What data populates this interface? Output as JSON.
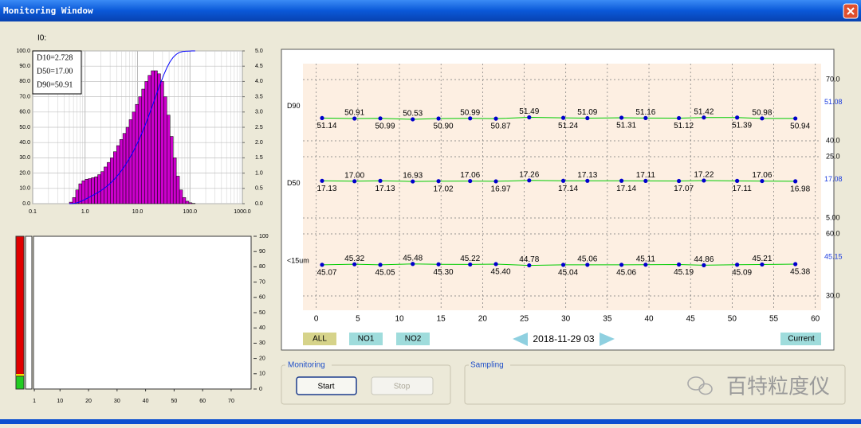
{
  "window": {
    "title": "Monitoring Window"
  },
  "chart_data": [
    {
      "type": "histogram",
      "label": "I0:",
      "annotations": [
        "D10=2.728",
        "D50=17.00",
        "D90=50.91"
      ],
      "xscale": "log",
      "xlim": [
        0.1,
        1000
      ],
      "xticks": [
        0.1,
        {
          "value": 1,
          "label": "1.0"
        },
        {
          "value": 10,
          "label": "10.0"
        },
        {
          "value": 100,
          "label": "100.0"
        },
        {
          "value": 1000,
          "label": "1000.0"
        }
      ],
      "ylim": [
        0,
        100
      ],
      "yticks": [
        {
          "value": 0,
          "label": "0.0"
        },
        {
          "value": 10,
          "label": "10.0"
        },
        {
          "value": 20,
          "label": "20.0"
        },
        {
          "value": 30,
          "label": "30.0"
        },
        {
          "value": 40,
          "label": "40.0"
        },
        {
          "value": 50,
          "label": "50.0"
        },
        {
          "value": 60,
          "label": "60.0"
        },
        {
          "value": 70,
          "label": "70.0"
        },
        {
          "value": 80,
          "label": "80.0"
        },
        {
          "value": 90,
          "label": "90.0"
        },
        {
          "value": 100,
          "label": "100.0"
        }
      ],
      "y2lim": [
        0,
        5
      ],
      "y2ticks": [
        {
          "value": 0,
          "label": "0.0"
        },
        0.5,
        {
          "value": 1,
          "label": "1.0"
        },
        1.5,
        {
          "value": 2,
          "label": "2.0"
        },
        2.5,
        {
          "value": 3,
          "label": "3.0"
        },
        3.5,
        {
          "value": 4,
          "label": "4.0"
        },
        4.5,
        {
          "value": 5,
          "label": "5.0"
        }
      ],
      "grid": true,
      "bins": [
        0.501,
        0.575,
        0.661,
        0.759,
        0.871,
        1.0,
        1.148,
        1.318,
        1.514,
        1.738,
        1.995,
        2.291,
        2.63,
        3.02,
        3.467,
        3.981,
        4.571,
        5.248,
        6.026,
        6.918,
        7.943,
        9.12,
        10.47,
        12.02,
        13.8,
        15.85,
        18.2,
        20.89,
        23.99,
        27.54,
        31.62,
        36.31,
        41.69,
        47.86,
        54.95,
        63.1,
        72.44,
        83.18,
        95.5,
        109.6,
        125.9
      ],
      "values": [
        0.05,
        0.2,
        0.45,
        0.65,
        0.75,
        0.8,
        0.82,
        0.85,
        0.88,
        0.95,
        1.05,
        1.2,
        1.35,
        1.5,
        1.7,
        1.9,
        2.1,
        2.3,
        2.5,
        2.75,
        3.0,
        3.25,
        3.5,
        3.75,
        4.0,
        4.2,
        4.35,
        4.35,
        4.25,
        4.0,
        3.5,
        2.9,
        2.2,
        1.5,
        0.9,
        0.45,
        0.2,
        0.08,
        0.03,
        0.01
      ],
      "color": "#cc00cc",
      "axis": "y2",
      "line": {
        "color": "#0000ff",
        "values": [
          0,
          0.07,
          0.33,
          0.93,
          1.8,
          2.8,
          3.86,
          4.95,
          6.08,
          7.25,
          8.51,
          9.91,
          11.5,
          13.3,
          15.3,
          17.6,
          20.1,
          22.9,
          25.9,
          29.3,
          32.9,
          36.9,
          41.2,
          45.9,
          50.9,
          56.2,
          61.8,
          67.6,
          73.4,
          79.0,
          84.3,
          89.0,
          92.9,
          95.8,
          97.8,
          99.0,
          99.6,
          99.8,
          99.9,
          100.0,
          100.0
        ]
      }
    },
    {
      "type": "bar",
      "xlim": [
        0.7,
        77
      ],
      "xticks": [
        1,
        10,
        20,
        30,
        40,
        50,
        60,
        70
      ],
      "ylim": [
        0,
        100
      ],
      "yticks": [
        0,
        10,
        20,
        30,
        40,
        50,
        60,
        70,
        80,
        90,
        100
      ]
    },
    {
      "type": "line",
      "xlim": [
        -1.6,
        60.7
      ],
      "xticks": [
        0,
        5,
        10,
        15,
        20,
        25,
        30,
        35,
        40,
        45,
        50,
        55,
        60
      ],
      "grid": true,
      "x": [
        0.7,
        4.6,
        7.7,
        11.6,
        14.7,
        18.5,
        21.6,
        25.6,
        29.7,
        32.6,
        36.7,
        39.6,
        43.6,
        46.6,
        50.6,
        53.6,
        57.6
      ],
      "series": [
        {
          "name": "D90",
          "color": "#00cc00",
          "marker_color": "#0000cc",
          "current": 51.08,
          "ylim": [
            40,
            70
          ],
          "yticks": [
            {
              "value": 70,
              "label": "70.0"
            },
            {
              "value": 40,
              "label": "40.0"
            }
          ],
          "values": [
            51.14,
            50.91,
            50.99,
            50.53,
            50.9,
            50.99,
            50.87,
            51.49,
            51.24,
            51.09,
            51.31,
            51.16,
            51.12,
            51.42,
            51.39,
            50.98,
            50.94
          ],
          "value_labels": [
            "51.14",
            "50.91",
            "50.99",
            "50.53",
            "50.90",
            "50.99",
            "50.87",
            "51.49",
            "51.24",
            "51.09",
            "51.31",
            "51.16",
            "51.12",
            "51.42",
            "51.39",
            "50.98",
            "50.94"
          ]
        },
        {
          "name": "D50",
          "color": "#00cc00",
          "marker_color": "#0000cc",
          "current": 17.08,
          "ylim": [
            5,
            25
          ],
          "yticks": [
            {
              "value": 25,
              "label": "25.0"
            },
            {
              "value": 5,
              "label": "5.00"
            }
          ],
          "values": [
            17.13,
            17.0,
            17.13,
            16.93,
            17.02,
            17.06,
            16.97,
            17.26,
            17.14,
            17.13,
            17.14,
            17.11,
            17.07,
            17.22,
            17.11,
            17.06,
            16.98
          ],
          "value_labels": [
            "17.13",
            "17.00",
            "17.13",
            "16.93",
            "17.02",
            "17.06",
            "16.97",
            "17.26",
            "17.14",
            "17.13",
            "17.14",
            "17.11",
            "17.07",
            "17.22",
            "17.11",
            "17.06",
            "16.98"
          ]
        },
        {
          "name": "<15um",
          "color": "#00cc00",
          "marker_color": "#0000cc",
          "current": 45.15,
          "ylim": [
            30,
            60
          ],
          "yticks": [
            {
              "value": 60,
              "label": "60.0"
            },
            {
              "value": 30,
              "label": "30.0"
            }
          ],
          "values": [
            45.07,
            45.32,
            45.05,
            45.48,
            45.3,
            45.22,
            45.4,
            44.78,
            45.04,
            45.06,
            45.06,
            45.11,
            45.19,
            44.86,
            45.09,
            45.21,
            45.38
          ],
          "value_labels": [
            "45.07",
            "45.32",
            "45.05",
            "45.48",
            "45.30",
            "45.22",
            "45.40",
            "44.78",
            "45.04",
            "45.06",
            "45.06",
            "45.11",
            "45.19",
            "44.86",
            "45.09",
            "45.21",
            "45.38"
          ]
        }
      ]
    }
  ],
  "controls": {
    "filters": [
      "ALL",
      "NO1",
      "NO2"
    ],
    "date": "2018-11-29 03",
    "current": "Current",
    "monitoring": {
      "title": "Monitoring",
      "start": "Start",
      "stop": "Stop"
    },
    "sampling": {
      "title": "Sampling"
    }
  },
  "watermark": "百特粒度仪"
}
